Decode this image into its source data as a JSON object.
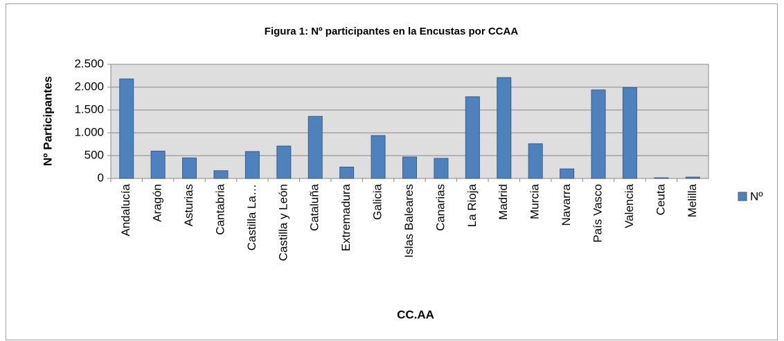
{
  "chart_data": {
    "type": "bar",
    "title": "Figura 1: Nº  participantes en la Encustas por CCAA",
    "x_label": "CC.AA",
    "y_label": "Nº Participantes",
    "categories": [
      "Andalucía",
      "Aragón",
      "Asturias",
      "Cantabria",
      "Castilla La…",
      "Castilla y León",
      "Cataluña",
      "Extremadura",
      "Galicia",
      "Islas Baleares",
      "Canarias",
      "La Rioja",
      "Madrid",
      "Murcia",
      "Navarra",
      "País Vasco",
      "Valencia",
      "Ceuta",
      "Melilla"
    ],
    "series": [
      {
        "name": "Nº",
        "color": "#4f81bd",
        "values": [
          2180,
          600,
          450,
          170,
          590,
          710,
          1360,
          250,
          940,
          470,
          440,
          1790,
          2210,
          760,
          210,
          1940,
          1990,
          15,
          30
        ]
      }
    ],
    "ylim": [
      0,
      2500
    ],
    "yticks": [
      0,
      500,
      {
        "value": 1000,
        "label": "1.000"
      },
      {
        "value": 1500,
        "label": "1.500"
      },
      {
        "value": 2000,
        "label": "2.000"
      },
      {
        "value": 2500,
        "label": "2.500"
      }
    ],
    "grid": true,
    "legend": "right"
  }
}
